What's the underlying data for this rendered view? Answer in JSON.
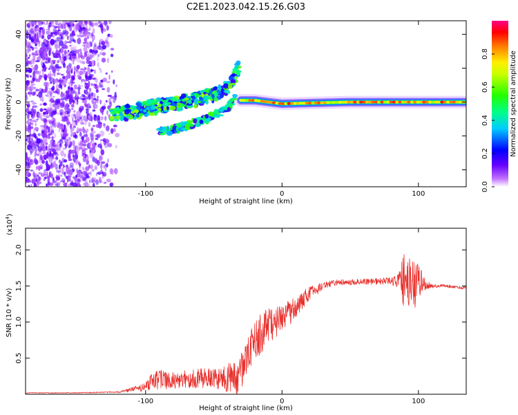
{
  "title": "C2E1.2023.042.15.26.G03",
  "chart_data": [
    {
      "type": "heatmap",
      "xlabel": "Height of straight line (km)",
      "ylabel": "Frequency (Hz)",
      "xlim": [
        -188,
        135
      ],
      "ylim": [
        -50,
        48
      ],
      "x_ticks": [
        -100,
        0,
        100
      ],
      "x_tick_labels": [
        "-100",
        "0",
        "100"
      ],
      "y_ticks": [
        -40,
        -20,
        0,
        20,
        40
      ],
      "y_tick_labels": [
        "-40",
        "-20",
        "0",
        "20",
        "40"
      ],
      "colorbar": {
        "label": "Normalized spectral amplitude",
        "range": [
          0,
          1
        ],
        "ticks": [
          0,
          0.2,
          0.4,
          0.6,
          0.8
        ],
        "tick_labels": [
          "0.0",
          "0.2",
          "0.4",
          "0.6",
          "0.8"
        ]
      },
      "features": [
        {
          "name": "noise-scatter",
          "x_range": [
            -188,
            -120
          ],
          "freq_range": [
            -50,
            48
          ],
          "amplitude": 0.1
        },
        {
          "name": "rising-branch",
          "x": [
            -125,
            -100,
            -80,
            -60,
            -45,
            -38,
            -32
          ],
          "freq": [
            -8,
            -4,
            -1,
            2,
            6,
            10,
            20
          ],
          "amplitude": 0.45
        },
        {
          "name": "lower-branch",
          "x": [
            -90,
            -70,
            -55,
            -45,
            -38,
            -33
          ],
          "freq": [
            -18,
            -14,
            -10,
            -6,
            -2,
            4
          ],
          "amplitude": 0.4
        },
        {
          "name": "stable-band",
          "x": [
            -30,
            -20,
            0,
            50,
            100,
            135
          ],
          "freq": [
            1,
            1,
            -1,
            0,
            0,
            0
          ],
          "amplitude": 0.85
        }
      ]
    },
    {
      "type": "line",
      "xlabel": "Height of straight line (km)",
      "ylabel": "SNR (10 * v/v)",
      "y_scale_label": "(x10",
      "y_scale_exponent": "4",
      "y_scale_suffix": ")",
      "xlim": [
        -188,
        135
      ],
      "ylim": [
        0,
        2.3
      ],
      "x_ticks": [
        -100,
        0,
        100
      ],
      "x_tick_labels": [
        "-100",
        "0",
        "100"
      ],
      "y_ticks": [
        0.5,
        1.0,
        1.5,
        2.0
      ],
      "y_tick_labels": [
        "0.5",
        "1.0",
        "1.5",
        "2.0"
      ],
      "series": [
        {
          "name": "SNR",
          "color": "#e8302c",
          "x": [
            -188,
            -150,
            -120,
            -100,
            -95,
            -90,
            -80,
            -60,
            -45,
            -40,
            -32,
            -25,
            -20,
            -15,
            -10,
            -5,
            0,
            10,
            20,
            30,
            40,
            60,
            80,
            85,
            90,
            95,
            100,
            105,
            110,
            120,
            135
          ],
          "mean": [
            0.02,
            0.02,
            0.03,
            0.1,
            0.18,
            0.2,
            0.2,
            0.22,
            0.2,
            0.22,
            0.24,
            0.55,
            0.72,
            0.85,
            0.95,
            1.0,
            1.05,
            1.2,
            1.38,
            1.5,
            1.55,
            1.56,
            1.57,
            1.56,
            1.55,
            1.53,
            1.5,
            1.52,
            1.5,
            1.5,
            1.47
          ],
          "amplitude": [
            0.005,
            0.005,
            0.01,
            0.06,
            0.12,
            0.14,
            0.12,
            0.14,
            0.15,
            0.2,
            0.25,
            0.25,
            0.28,
            0.3,
            0.25,
            0.22,
            0.2,
            0.15,
            0.12,
            0.05,
            0.04,
            0.04,
            0.05,
            0.1,
            0.45,
            0.4,
            0.3,
            0.08,
            0.03,
            0.02,
            0.02
          ]
        }
      ]
    }
  ]
}
